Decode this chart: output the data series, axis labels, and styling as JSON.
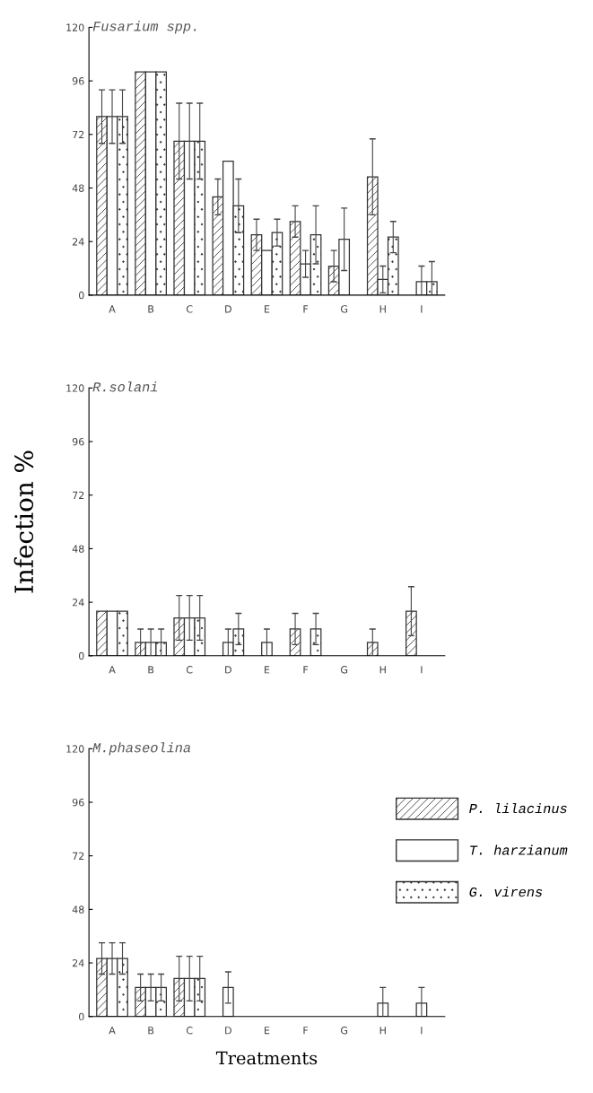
{
  "chart_data": [
    {
      "type": "bar",
      "title": "Fusarium spp.",
      "categories": [
        "A",
        "B",
        "C",
        "D",
        "E",
        "F",
        "G",
        "H",
        "I"
      ],
      "ylim": [
        0,
        120
      ],
      "yticks": [
        0,
        24,
        48,
        72,
        96,
        120
      ],
      "grid": false,
      "legend": false,
      "series": [
        {
          "color": "#333333",
          "values": [
            80,
            100,
            69,
            44,
            27,
            33,
            13,
            53,
            null
          ],
          "errors": [
            12,
            null,
            17,
            8,
            7,
            7,
            7,
            17,
            null
          ]
        },
        {
          "color": "#333333",
          "values": [
            80,
            100,
            69,
            60,
            20,
            14,
            25,
            7,
            6
          ],
          "errors": [
            12,
            null,
            17,
            null,
            null,
            6,
            14,
            6,
            7
          ]
        },
        {
          "color": "#333333",
          "values": [
            80,
            100,
            69,
            40,
            28,
            27,
            null,
            26,
            6
          ],
          "errors": [
            12,
            null,
            17,
            12,
            6,
            13,
            null,
            7,
            9
          ]
        }
      ]
    },
    {
      "type": "bar",
      "title": "R.solani",
      "ylabel": "Infection %",
      "categories": [
        "A",
        "B",
        "C",
        "D",
        "E",
        "F",
        "G",
        "H",
        "I"
      ],
      "ylim": [
        0,
        120
      ],
      "yticks": [
        0,
        24,
        48,
        72,
        96,
        120
      ],
      "grid": false,
      "legend": false,
      "series": [
        {
          "color": "#333333",
          "values": [
            20,
            6,
            17,
            null,
            null,
            12,
            null,
            6,
            20
          ],
          "errors": [
            null,
            6,
            10,
            null,
            null,
            7,
            null,
            6,
            11
          ]
        },
        {
          "color": "#333333",
          "values": [
            20,
            6,
            17,
            6,
            6,
            null,
            null,
            null,
            null
          ],
          "errors": [
            null,
            6,
            10,
            6,
            6,
            null,
            null,
            null,
            null
          ]
        },
        {
          "color": "#333333",
          "values": [
            20,
            6,
            17,
            12,
            null,
            12,
            null,
            null,
            null
          ],
          "errors": [
            null,
            6,
            10,
            7,
            null,
            7,
            null,
            null,
            null
          ]
        }
      ]
    },
    {
      "type": "bar",
      "title": "M.phaseolina",
      "xlabel": "Treatments",
      "categories": [
        "A",
        "B",
        "C",
        "D",
        "E",
        "F",
        "G",
        "H",
        "I"
      ],
      "ylim": [
        0,
        120
      ],
      "yticks": [
        0,
        24,
        48,
        72,
        96,
        120
      ],
      "grid": false,
      "legend": "right",
      "series": [
        {
          "name": "P. lilacinus",
          "color": "#333333",
          "values": [
            26,
            13,
            17,
            null,
            null,
            null,
            null,
            null,
            null
          ],
          "errors": [
            7,
            6,
            10,
            null,
            null,
            null,
            null,
            null,
            null
          ]
        },
        {
          "name": "T. harzianum",
          "color": "#333333",
          "values": [
            26,
            13,
            17,
            13,
            null,
            null,
            null,
            6,
            6
          ],
          "errors": [
            7,
            6,
            10,
            7,
            null,
            null,
            null,
            7,
            7
          ]
        },
        {
          "name": "G. virens",
          "color": "#333333",
          "values": [
            26,
            13,
            17,
            null,
            null,
            null,
            null,
            null,
            null
          ],
          "errors": [
            7,
            6,
            10,
            null,
            null,
            null,
            null,
            null,
            null
          ]
        }
      ]
    }
  ]
}
